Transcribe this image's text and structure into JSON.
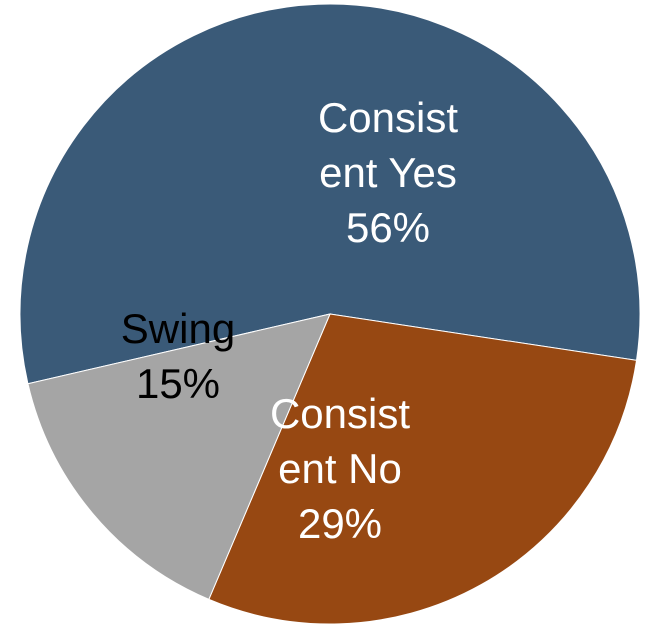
{
  "chart_data": {
    "type": "pie",
    "slices": [
      {
        "label_lines": [
          "Consist",
          "ent Yes"
        ],
        "percent_label": "56%",
        "value": 56,
        "color": "#3a5a78",
        "text_color": "#ffffff"
      },
      {
        "label_lines": [
          "Consist",
          "ent No"
        ],
        "percent_label": "29%",
        "value": 29,
        "color": "#974812",
        "text_color": "#ffffff"
      },
      {
        "label_lines": [
          "Swing"
        ],
        "percent_label": "15%",
        "value": 15,
        "color": "#a5a5a5",
        "text_color": "#000000"
      }
    ],
    "legend": "none"
  }
}
